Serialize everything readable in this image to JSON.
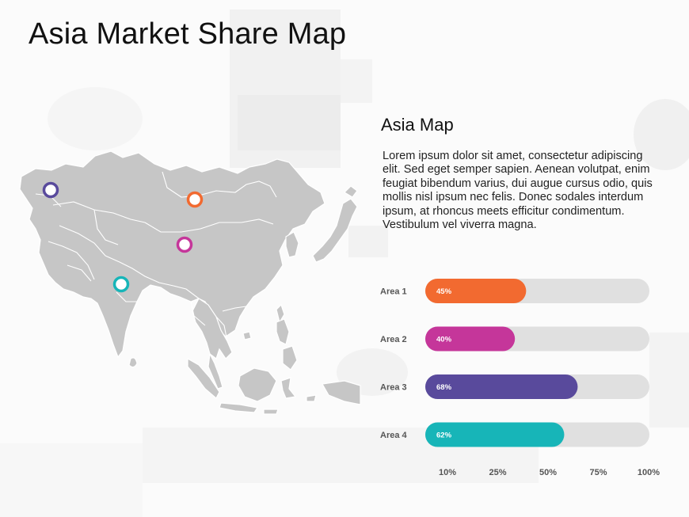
{
  "page": {
    "title": "Asia Market Share Map",
    "section_title": "Asia Map",
    "description": "Lorem ipsum dolor sit amet, consectetur adipiscing elit. Sed eget semper sapien. Aenean volutpat, enim feugiat bibendum varius, dui augue cursus odio, quis mollis nisl ipsum nec felis. Donec sodales interdum ipsum, at rhoncus meets efficitur condimentum. Vestibulum vel viverra magna."
  },
  "map": {
    "region": "Asia",
    "pins": [
      {
        "label": "Area 1",
        "color": "#F26A30"
      },
      {
        "label": "Area 2",
        "color": "#C5369A"
      },
      {
        "label": "Area 3",
        "color": "#594A9C"
      },
      {
        "label": "Area 4",
        "color": "#17B5B8"
      }
    ]
  },
  "chart_data": {
    "type": "bar",
    "orientation": "horizontal",
    "categories": [
      "Area 1",
      "Area 2",
      "Area 3",
      "Area 4"
    ],
    "values": [
      45,
      40,
      68,
      62
    ],
    "value_labels": [
      "45%",
      "40%",
      "68%",
      "62%"
    ],
    "colors": [
      "#F26A30",
      "#C5369A",
      "#594A9C",
      "#17B5B8"
    ],
    "track_color": "#E0E0E0",
    "xticks": [
      10,
      25,
      50,
      75,
      100
    ],
    "xtick_labels": [
      "10%",
      "25%",
      "50%",
      "75%",
      "100%"
    ],
    "xlim": [
      0,
      100
    ],
    "grid": false
  }
}
